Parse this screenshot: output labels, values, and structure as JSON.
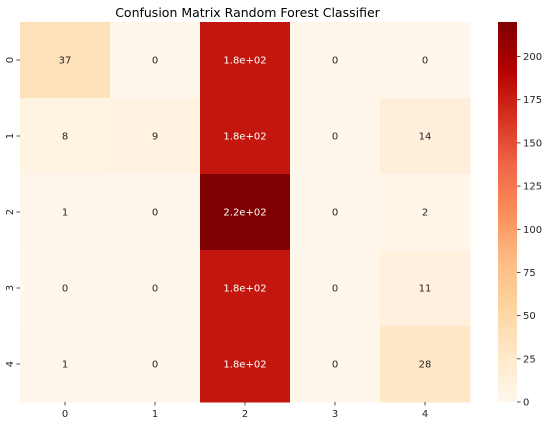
{
  "chart_data": {
    "type": "heatmap",
    "title": "Confusion Matrix Random Forest Classifier",
    "xlabel": "",
    "ylabel": "",
    "x_tick_labels": [
      "0",
      "1",
      "2",
      "3",
      "4"
    ],
    "y_tick_labels": [
      "0",
      "1",
      "2",
      "3",
      "4"
    ],
    "values": [
      [
        37,
        0,
        180,
        0,
        0
      ],
      [
        8,
        9,
        180,
        0,
        14
      ],
      [
        1,
        0,
        220,
        0,
        2
      ],
      [
        0,
        0,
        180,
        0,
        11
      ],
      [
        1,
        0,
        180,
        0,
        28
      ]
    ],
    "annotations": [
      [
        "37",
        "0",
        "1.8e+02",
        "0",
        "0"
      ],
      [
        "8",
        "9",
        "1.8e+02",
        "0",
        "14"
      ],
      [
        "1",
        "0",
        "2.2e+02",
        "0",
        "2"
      ],
      [
        "0",
        "0",
        "1.8e+02",
        "0",
        "11"
      ],
      [
        "1",
        "0",
        "1.8e+02",
        "0",
        "28"
      ]
    ],
    "colormap": "OrRd",
    "vmin": 0,
    "vmax": 220,
    "colorbar_ticks": [
      0,
      25,
      50,
      75,
      100,
      125,
      150,
      175,
      200
    ],
    "grid": false,
    "legend": "colorbar-right"
  }
}
